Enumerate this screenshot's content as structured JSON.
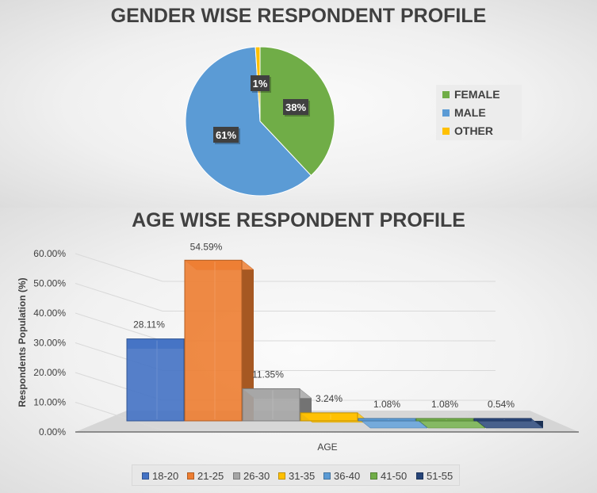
{
  "chart_data": [
    {
      "type": "pie",
      "title": "GENDER WISE RESPONDENT PROFILE",
      "categories": [
        "FEMALE",
        "MALE",
        "OTHER"
      ],
      "values": [
        38,
        61,
        1
      ],
      "data_labels": [
        "38%",
        "61%",
        "1%"
      ],
      "colors": [
        "#70ad47",
        "#5b9bd5",
        "#ffc000"
      ],
      "legend": "right"
    },
    {
      "type": "bar",
      "title": "AGE WISE RESPONDENT PROFILE",
      "xlabel": "AGE",
      "ylabel": "Respondents Population (%)",
      "ylim": [
        0,
        60
      ],
      "yticks": [
        "0.00%",
        "10.00%",
        "20.00%",
        "30.00%",
        "40.00%",
        "50.00%",
        "60.00%"
      ],
      "categories": [
        "18-20",
        "21-25",
        "26-30",
        "31-35",
        "36-40",
        "41-50",
        "51-55"
      ],
      "values": [
        28.11,
        54.59,
        11.35,
        3.24,
        1.08,
        1.08,
        0.54
      ],
      "data_labels": [
        "28.11%",
        "54.59%",
        "11.35%",
        "3.24%",
        "1.08%",
        "1.08%",
        "0.54%"
      ],
      "colors": [
        "#4472c4",
        "#ed7d31",
        "#a5a5a5",
        "#ffc000",
        "#5b9bd5",
        "#70ad47",
        "#264478"
      ],
      "legend": "bottom",
      "grid": true
    }
  ]
}
